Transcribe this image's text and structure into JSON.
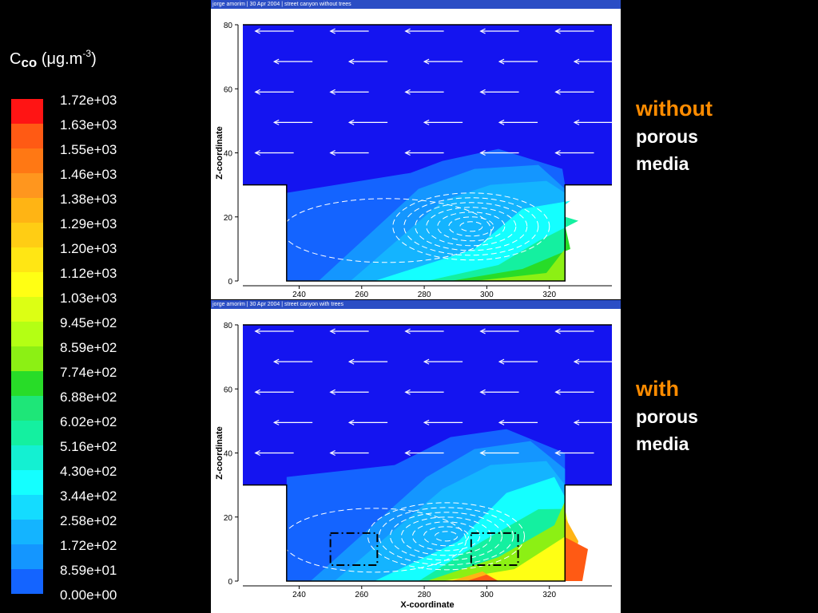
{
  "legend": {
    "title_main": "C",
    "title_sub": "co",
    "title_unit_pre": " (μg.m",
    "title_unit_sup": "-3",
    "title_unit_post": ")",
    "levels": [
      "1.72e+03",
      "1.63e+03",
      "1.55e+03",
      "1.46e+03",
      "1.38e+03",
      "1.29e+03",
      "1.20e+03",
      "1.12e+03",
      "1.03e+03",
      "9.45e+02",
      "8.59e+02",
      "7.74e+02",
      "6.88e+02",
      "6.02e+02",
      "5.16e+02",
      "4.30e+02",
      "3.44e+02",
      "2.58e+02",
      "1.72e+02",
      "8.59e+01",
      "0.00e+00"
    ],
    "colors": [
      "#ff1414",
      "#ff5a14",
      "#ff7814",
      "#ff961e",
      "#ffb414",
      "#ffcd14",
      "#ffe614",
      "#ffff14",
      "#dcff14",
      "#b4ff14",
      "#8cf014",
      "#28dc28",
      "#1ee678",
      "#14f0a0",
      "#14f0d2",
      "#14ffff",
      "#14dcff",
      "#14b4ff",
      "#1496ff",
      "#1464ff",
      "#1414f0"
    ]
  },
  "chart_data": [
    {
      "type": "contour",
      "header": "jorge amorim  |  30 Apr 2004  |  street canyon without trees",
      "xlabel": "",
      "ylabel": "Z-coordinate",
      "xlim": [
        222,
        340
      ],
      "ylim": [
        0,
        80
      ],
      "x_ticks": [
        240,
        260,
        280,
        300,
        320
      ],
      "y_ticks": [
        0,
        20,
        40,
        60,
        80
      ],
      "side_label": [
        "without",
        "porous",
        "media"
      ],
      "canyon": {
        "left_wall_x": 236,
        "right_wall_x": 325,
        "roof_z": 30
      },
      "vortex_center": [
        295,
        17
      ]
    },
    {
      "type": "contour",
      "header": "jorge amorim  |  30 Apr 2004  |  street canyon with trees",
      "xlabel": "X-coordinate",
      "ylabel": "Z-coordinate",
      "xlim": [
        222,
        340
      ],
      "ylim": [
        0,
        80
      ],
      "x_ticks": [
        240,
        260,
        280,
        300,
        320
      ],
      "y_ticks": [
        0,
        20,
        40,
        60,
        80
      ],
      "side_label": [
        "with",
        "porous",
        "media"
      ],
      "canyon": {
        "left_wall_x": 236,
        "right_wall_x": 325,
        "roof_z": 30
      },
      "vortex_center": [
        287,
        14
      ],
      "porous_boxes": [
        [
          250,
          5,
          265,
          15
        ],
        [
          295,
          5,
          310,
          15
        ]
      ]
    }
  ]
}
